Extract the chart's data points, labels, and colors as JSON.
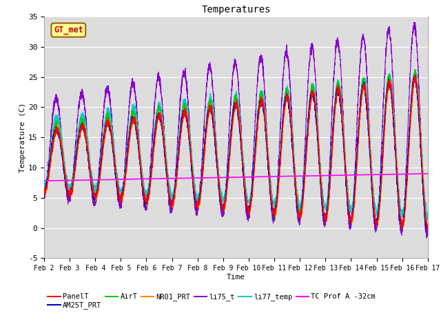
{
  "title": "Temperatures",
  "xlabel": "Time",
  "ylabel": "Temperature (C)",
  "ylim": [
    -5,
    35
  ],
  "xlim": [
    0,
    15
  ],
  "x_tick_labels": [
    "Feb 2",
    "Feb 3",
    "Feb 4",
    "Feb 5",
    "Feb 6",
    "Feb 7",
    "Feb 8",
    "Feb 9",
    "Feb 10",
    "Feb 11",
    "Feb 12",
    "Feb 13",
    "Feb 14",
    "Feb 15",
    "Feb 16",
    "Feb 17"
  ],
  "x_tick_positions": [
    0,
    1,
    2,
    3,
    4,
    5,
    6,
    7,
    8,
    9,
    10,
    11,
    12,
    13,
    14,
    15
  ],
  "y_tick_labels": [
    "-5",
    "0",
    "5",
    "10",
    "15",
    "20",
    "25",
    "30",
    "35"
  ],
  "y_tick_positions": [
    -5,
    0,
    5,
    10,
    15,
    20,
    25,
    30,
    35
  ],
  "annotation_text": "GT_met",
  "annotation_color": "#cc0000",
  "annotation_bg": "#ffff99",
  "annotation_border": "#996600",
  "bg_color": "#dcdcdc",
  "series_colors": {
    "PanelT": "#ff0000",
    "AM25T_PRT": "#0000cc",
    "AirT": "#00cc00",
    "NR01_PRT": "#ff8800",
    "li75_t": "#8800cc",
    "li77_temp": "#00cccc",
    "TC_Prof_A": "#ff00ff"
  },
  "legend_items": [
    {
      "label": "PanelT",
      "color": "#ff0000"
    },
    {
      "label": "AM25T_PRT",
      "color": "#0000cc"
    },
    {
      "label": "AirT",
      "color": "#00cc00"
    },
    {
      "label": "NR01_PRT",
      "color": "#ff8800"
    },
    {
      "label": "li75_t",
      "color": "#8800cc"
    },
    {
      "label": "li77_temp",
      "color": "#00cccc"
    },
    {
      "label": "TC Prof A -32cm",
      "color": "#ff00ff"
    }
  ]
}
